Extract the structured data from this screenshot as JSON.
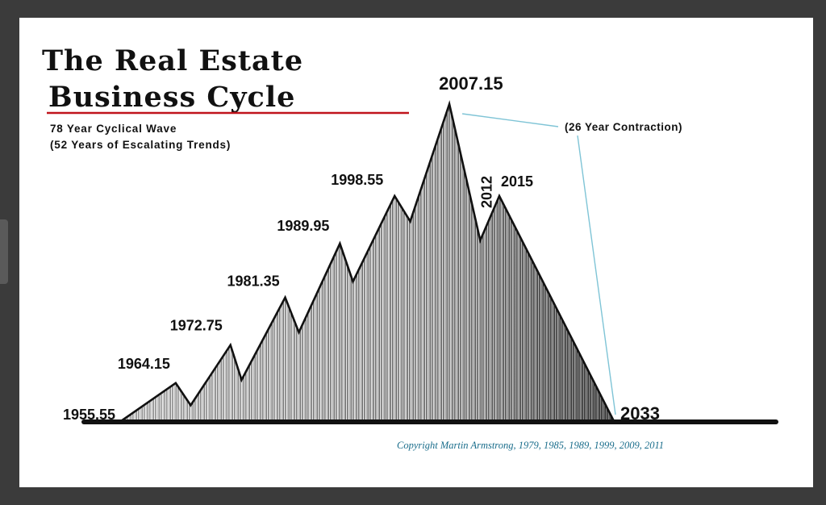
{
  "chart_data": {
    "type": "area",
    "title_line1": "The Real Estate",
    "title_line2": "Business Cycle",
    "subtitle_line1": "78 Year Cyclical Wave",
    "subtitle_line2": "(52 Years of Escalating Trends)",
    "contraction_label": "(26 Year Contraction)",
    "copyright": "Copyright Martin Armstrong, 1979, 1985, 1989, 1999, 2009, 2011",
    "points": [
      {
        "year": 1955.55,
        "level": 0,
        "label": "1955.55"
      },
      {
        "year": 1964.15,
        "level": 0.12,
        "label": "1964.15"
      },
      {
        "year": 1966.5,
        "level": 0.05,
        "label": ""
      },
      {
        "year": 1972.75,
        "level": 0.24,
        "label": "1972.75"
      },
      {
        "year": 1974.5,
        "level": 0.13,
        "label": ""
      },
      {
        "year": 1981.35,
        "level": 0.39,
        "label": "1981.35"
      },
      {
        "year": 1983.5,
        "level": 0.28,
        "label": ""
      },
      {
        "year": 1989.95,
        "level": 0.56,
        "label": "1989.95"
      },
      {
        "year": 1992.0,
        "level": 0.44,
        "label": ""
      },
      {
        "year": 1998.55,
        "level": 0.71,
        "label": "1998.55"
      },
      {
        "year": 2001.0,
        "level": 0.63,
        "label": ""
      },
      {
        "year": 2007.15,
        "level": 1.0,
        "label": "2007.15"
      },
      {
        "year": 2012,
        "level": 0.57,
        "label": "2012"
      },
      {
        "year": 2015,
        "level": 0.71,
        "label": "2015"
      },
      {
        "year": 2033,
        "level": 0,
        "label": "2033"
      }
    ]
  },
  "colors": {
    "title_underline": "#c0141c",
    "copyright": "#1b6e8c",
    "contraction_line": "#7fc4d6",
    "frame_bg": "#3b3b3b"
  }
}
